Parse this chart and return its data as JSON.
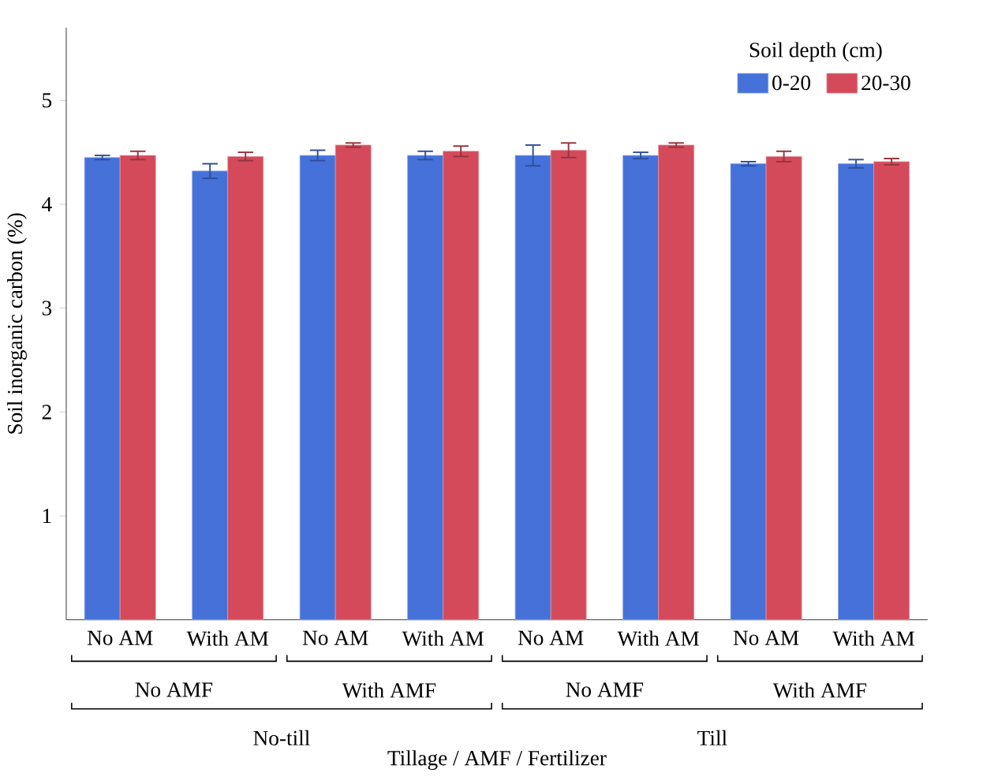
{
  "chart_data": {
    "type": "bar",
    "xlabel": "Tillage / AMF / Fertilizer",
    "ylabel": "Soil inorganic carbon (%)",
    "legend_title": "Soil depth (cm)",
    "categories": [
      "No AM",
      "With AM",
      "No AM",
      "With AM",
      "No AM",
      "With AM",
      "No AM",
      "With AM"
    ],
    "series": [
      {
        "name": "0-20",
        "color": "#4571d9",
        "values": [
          4.45,
          4.32,
          4.47,
          4.47,
          4.47,
          4.47,
          4.39,
          4.39
        ],
        "errors": [
          0.02,
          0.07,
          0.05,
          0.04,
          0.1,
          0.03,
          0.02,
          0.04
        ]
      },
      {
        "name": "20-30",
        "color": "#d44a5a",
        "values": [
          4.47,
          4.46,
          4.57,
          4.51,
          4.52,
          4.57,
          4.46,
          4.41
        ],
        "errors": [
          0.04,
          0.04,
          0.02,
          0.05,
          0.07,
          0.02,
          0.05,
          0.03
        ]
      }
    ],
    "annotations": [
      "No AMF",
      "With AMF",
      "No AMF",
      "With AMF",
      "No-till",
      "Till"
    ],
    "ylim": [
      0,
      5.7
    ],
    "yticks": [
      1,
      2,
      3,
      4,
      5
    ],
    "legend": "top right",
    "grid": false
  }
}
